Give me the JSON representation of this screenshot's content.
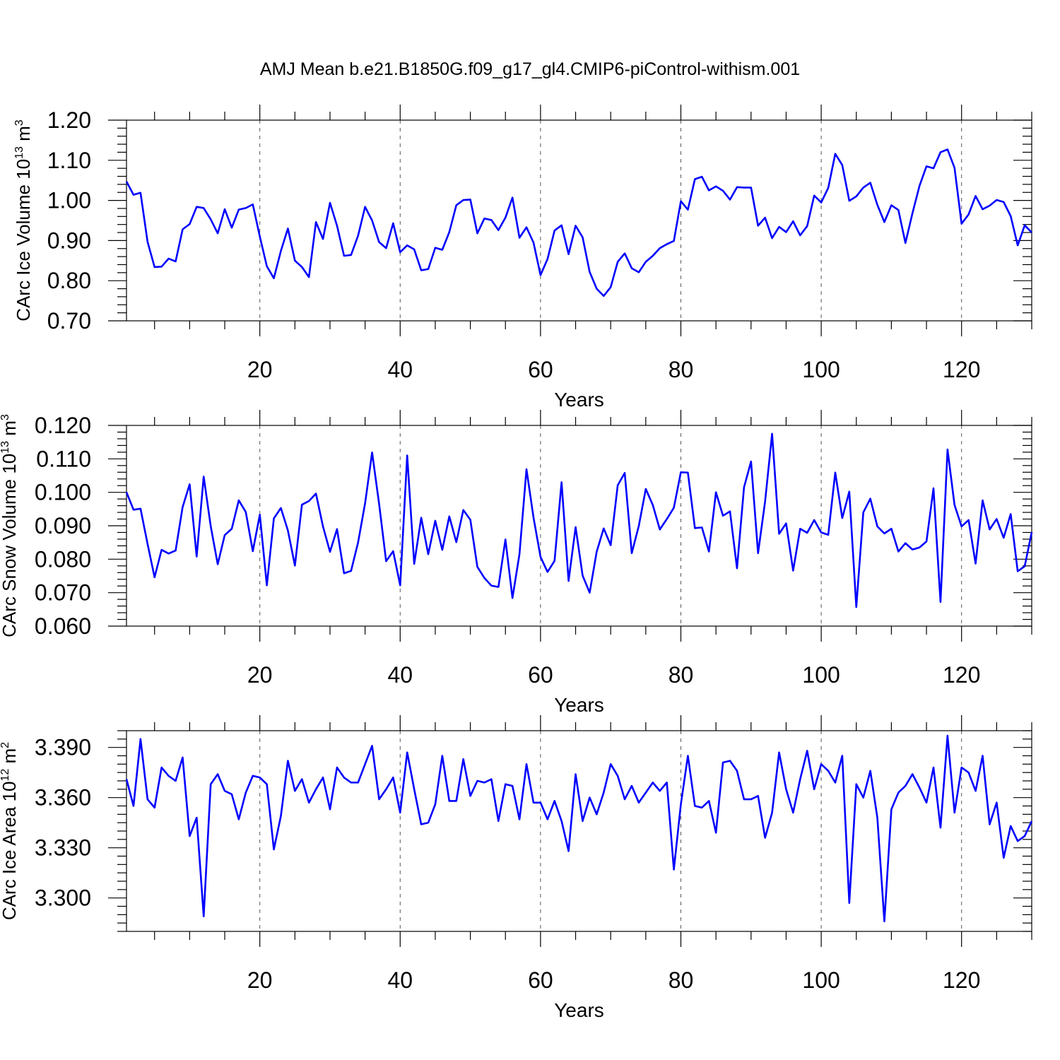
{
  "title": "AMJ Mean b.e21.B1850G.f09_g17_gl4.CMIP6-piControl-withism.001",
  "line_color": "#0000ff",
  "chart_data": [
    {
      "type": "line",
      "ylabel": {
        "text": "CArc Ice Volume 10",
        "sup": "13",
        "unit": " m",
        "unit_sup": "3"
      },
      "xlabel": "Years",
      "xlim": [
        1,
        130
      ],
      "ylim": [
        0.7,
        1.2
      ],
      "xticks": [
        20,
        40,
        60,
        80,
        100,
        120
      ],
      "xtick_labels": [
        "20",
        "40",
        "60",
        "80",
        "100",
        "120"
      ],
      "yticks": [
        0.7,
        0.8,
        0.9,
        1.0,
        1.1,
        1.2
      ],
      "ytick_labels": [
        "0.70",
        "0.80",
        "0.90",
        "1.00",
        "1.10",
        "1.20"
      ],
      "grid": "vertical dashed at major x ticks",
      "series": [
        {
          "x_start": 1,
          "values": [
            1.047,
            1.014,
            1.019,
            0.897,
            0.834,
            0.835,
            0.855,
            0.848,
            0.928,
            0.941,
            0.984,
            0.981,
            0.953,
            0.918,
            0.978,
            0.932,
            0.977,
            0.981,
            0.99,
            0.91,
            0.836,
            0.806,
            0.874,
            0.93,
            0.85,
            0.834,
            0.809,
            0.946,
            0.904,
            0.994,
            0.937,
            0.862,
            0.864,
            0.912,
            0.984,
            0.95,
            0.896,
            0.881,
            0.943,
            0.871,
            0.888,
            0.878,
            0.826,
            0.829,
            0.882,
            0.877,
            0.921,
            0.988,
            1.001,
            1.002,
            0.918,
            0.955,
            0.951,
            0.926,
            0.957,
            1.007,
            0.907,
            0.933,
            0.895,
            0.814,
            0.854,
            0.925,
            0.938,
            0.866,
            0.937,
            0.908,
            0.822,
            0.78,
            0.762,
            0.784,
            0.847,
            0.868,
            0.831,
            0.821,
            0.847,
            0.862,
            0.881,
            0.891,
            0.899,
            0.998,
            0.977,
            1.053,
            1.059,
            1.025,
            1.035,
            1.024,
            1.002,
            1.033,
            1.032,
            1.032,
            0.937,
            0.957,
            0.906,
            0.934,
            0.921,
            0.948,
            0.913,
            0.936,
            1.012,
            0.995,
            1.031,
            1.116,
            1.088,
            0.999,
            1.01,
            1.032,
            1.044,
            0.989,
            0.946,
            0.988,
            0.976,
            0.894,
            0.968,
            1.036,
            1.085,
            1.08,
            1.12,
            1.127,
            1.081,
            0.942,
            0.965,
            1.011,
            0.978,
            0.987,
            1.001,
            0.996,
            0.961,
            0.888,
            0.938,
            0.92
          ]
        }
      ]
    },
    {
      "type": "line",
      "ylabel": {
        "text": "CArc Snow Volume 10",
        "sup": "13",
        "unit": " m",
        "unit_sup": "3"
      },
      "xlabel": "Years",
      "xlim": [
        1,
        130
      ],
      "ylim": [
        0.06,
        0.12
      ],
      "xticks": [
        20,
        40,
        60,
        80,
        100,
        120
      ],
      "xtick_labels": [
        "20",
        "40",
        "60",
        "80",
        "100",
        "120"
      ],
      "yticks": [
        0.06,
        0.07,
        0.08,
        0.09,
        0.1,
        0.11,
        0.12
      ],
      "ytick_labels": [
        "0.060",
        "0.070",
        "0.080",
        "0.090",
        "0.100",
        "0.110",
        "0.120"
      ],
      "grid": "vertical dashed at major x ticks",
      "series": [
        {
          "x_start": 1,
          "values": [
            0.1,
            0.0948,
            0.0951,
            0.0846,
            0.0746,
            0.0828,
            0.0817,
            0.0826,
            0.0956,
            0.1024,
            0.0808,
            0.1047,
            0.0899,
            0.0785,
            0.0872,
            0.0891,
            0.0976,
            0.0941,
            0.0824,
            0.0933,
            0.0722,
            0.0922,
            0.0953,
            0.0886,
            0.0781,
            0.0963,
            0.0974,
            0.0996,
            0.0898,
            0.0822,
            0.089,
            0.0758,
            0.0765,
            0.085,
            0.0967,
            0.1119,
            0.0965,
            0.0794,
            0.0824,
            0.0722,
            0.111,
            0.0786,
            0.0924,
            0.0815,
            0.0915,
            0.0828,
            0.0928,
            0.0851,
            0.0947,
            0.0918,
            0.0777,
            0.0744,
            0.0721,
            0.0717,
            0.0859,
            0.0684,
            0.0815,
            0.1069,
            0.0925,
            0.0807,
            0.0762,
            0.0795,
            0.103,
            0.0735,
            0.0896,
            0.0751,
            0.07,
            0.0822,
            0.0892,
            0.0842,
            0.1021,
            0.1058,
            0.0818,
            0.0899,
            0.101,
            0.0962,
            0.0889,
            0.092,
            0.0954,
            0.106,
            0.1059,
            0.0893,
            0.0895,
            0.0823,
            0.1,
            0.093,
            0.0943,
            0.0773,
            0.1015,
            0.1092,
            0.0818,
            0.0972,
            0.1175,
            0.0876,
            0.0907,
            0.0766,
            0.0891,
            0.0879,
            0.0917,
            0.088,
            0.0873,
            0.1059,
            0.0923,
            0.1002,
            0.0657,
            0.094,
            0.0981,
            0.0898,
            0.0877,
            0.0891,
            0.0823,
            0.0848,
            0.0829,
            0.0835,
            0.0853,
            0.1012,
            0.0672,
            0.1128,
            0.0962,
            0.0898,
            0.0917,
            0.0787,
            0.0976,
            0.0889,
            0.092,
            0.0864,
            0.0935,
            0.0764,
            0.0779,
            0.0881
          ]
        }
      ]
    },
    {
      "type": "line",
      "ylabel": {
        "text": "CArc Ice Area 10",
        "sup": "12",
        "unit": " m",
        "unit_sup": "2"
      },
      "xlabel": "Years",
      "xlim": [
        1,
        130
      ],
      "ylim": [
        3.28,
        3.4
      ],
      "xticks": [
        20,
        40,
        60,
        80,
        100,
        120
      ],
      "xtick_labels": [
        "20",
        "40",
        "60",
        "80",
        "100",
        "120"
      ],
      "yticks": [
        3.3,
        3.33,
        3.36,
        3.39
      ],
      "ytick_labels": [
        "3.300",
        "3.330",
        "3.360",
        "3.390"
      ],
      "grid": "vertical dashed at major x ticks",
      "series": [
        {
          "x_start": 1,
          "values": [
            3.371,
            3.355,
            3.395,
            3.359,
            3.354,
            3.378,
            3.373,
            3.37,
            3.384,
            3.337,
            3.348,
            3.289,
            3.368,
            3.374,
            3.364,
            3.362,
            3.347,
            3.363,
            3.373,
            3.372,
            3.368,
            3.329,
            3.349,
            3.382,
            3.364,
            3.371,
            3.357,
            3.365,
            3.372,
            3.353,
            3.378,
            3.372,
            3.369,
            3.369,
            3.38,
            3.391,
            3.359,
            3.365,
            3.372,
            3.351,
            3.387,
            3.365,
            3.344,
            3.345,
            3.356,
            3.385,
            3.358,
            3.358,
            3.383,
            3.361,
            3.37,
            3.369,
            3.371,
            3.346,
            3.368,
            3.367,
            3.347,
            3.38,
            3.357,
            3.357,
            3.347,
            3.358,
            3.346,
            3.328,
            3.374,
            3.346,
            3.36,
            3.35,
            3.363,
            3.38,
            3.373,
            3.359,
            3.367,
            3.357,
            3.363,
            3.369,
            3.364,
            3.369,
            3.317,
            3.356,
            3.385,
            3.355,
            3.354,
            3.358,
            3.339,
            3.381,
            3.382,
            3.376,
            3.359,
            3.359,
            3.361,
            3.336,
            3.351,
            3.387,
            3.365,
            3.351,
            3.371,
            3.388,
            3.365,
            3.38,
            3.376,
            3.369,
            3.385,
            3.297,
            3.368,
            3.36,
            3.376,
            3.348,
            3.286,
            3.353,
            3.363,
            3.367,
            3.374,
            3.366,
            3.357,
            3.378,
            3.342,
            3.397,
            3.351,
            3.378,
            3.375,
            3.364,
            3.385,
            3.344,
            3.357,
            3.324,
            3.343,
            3.334,
            3.337,
            3.346
          ]
        }
      ]
    }
  ]
}
